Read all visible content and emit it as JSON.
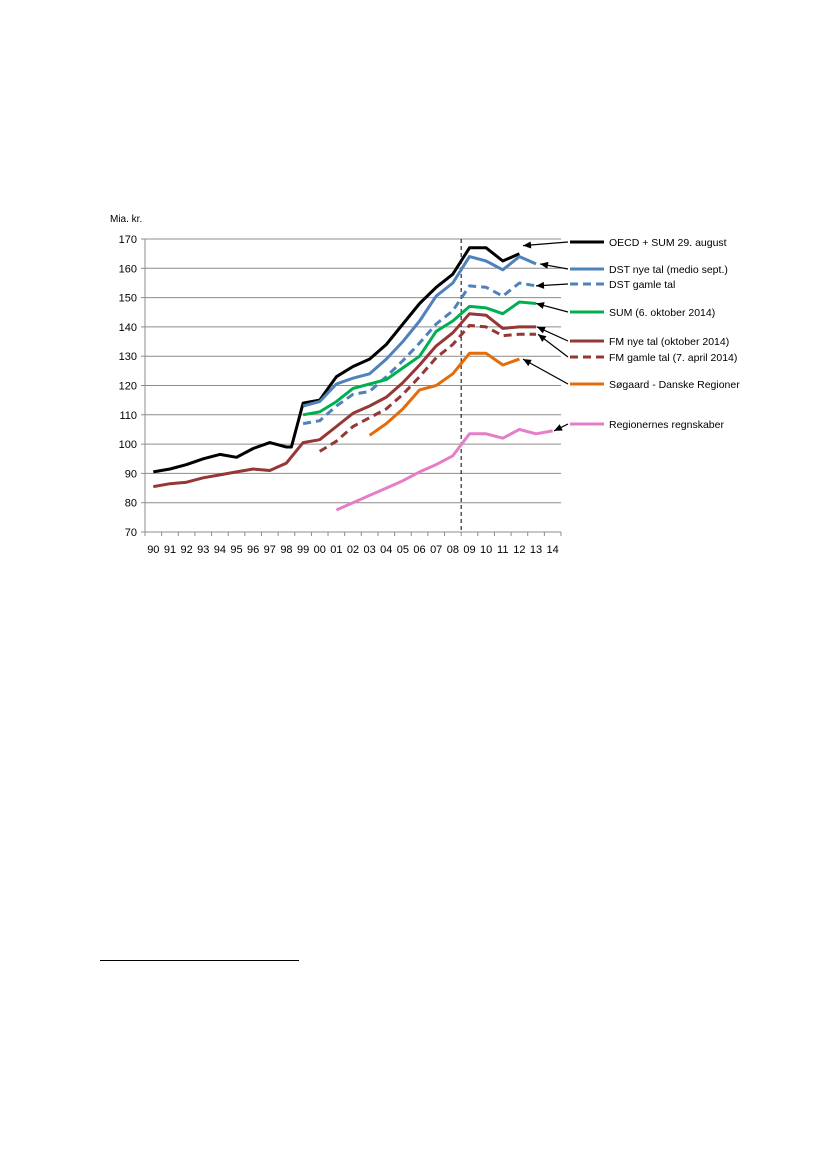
{
  "chart_data": {
    "type": "line",
    "title": "",
    "ylabel": "Mia. kr.",
    "xlabel": "",
    "ylim": [
      70,
      170
    ],
    "yticks": [
      70,
      80,
      90,
      100,
      110,
      120,
      130,
      140,
      150,
      160,
      170
    ],
    "categories": [
      "90",
      "91",
      "92",
      "93",
      "94",
      "95",
      "96",
      "97",
      "98",
      "99",
      "00",
      "01",
      "02",
      "03",
      "04",
      "05",
      "06",
      "07",
      "08",
      "09",
      "10",
      "11",
      "12",
      "13",
      "14"
    ],
    "vertical_marker_after": "08",
    "grid": "horizontal",
    "series": [
      {
        "name": "OECD + SUM 29. august",
        "color": "#000000",
        "dashed": false,
        "points": [
          [
            0,
            90.5
          ],
          [
            1,
            91.5
          ],
          [
            2,
            93
          ],
          [
            3,
            95
          ],
          [
            4,
            96.5
          ],
          [
            5,
            95.5
          ],
          [
            6,
            98.5
          ],
          [
            7,
            100.5
          ],
          [
            8,
            99
          ],
          [
            8.3,
            99
          ],
          [
            9,
            114
          ],
          [
            10,
            115
          ],
          [
            11,
            123
          ],
          [
            12,
            126.5
          ],
          [
            13,
            129
          ],
          [
            14,
            134
          ],
          [
            15,
            141
          ],
          [
            16,
            148
          ],
          [
            17,
            153.5
          ],
          [
            18,
            158
          ],
          [
            19,
            167
          ],
          [
            20,
            167
          ],
          [
            21,
            162.5
          ],
          [
            22,
            165
          ]
        ]
      },
      {
        "name": "DST nye tal (medio sept.)",
        "color": "#4f81bd",
        "dashed": false,
        "points": [
          [
            9,
            113
          ],
          [
            10,
            114.5
          ],
          [
            11,
            120.5
          ],
          [
            12,
            122.5
          ],
          [
            13,
            124
          ],
          [
            14,
            129
          ],
          [
            15,
            135
          ],
          [
            16,
            142
          ],
          [
            17,
            150.5
          ],
          [
            18,
            155
          ],
          [
            19,
            164
          ],
          [
            20,
            162.5
          ],
          [
            21,
            159.5
          ],
          [
            22,
            164
          ],
          [
            23,
            161.5
          ]
        ]
      },
      {
        "name": "DST gamle tal",
        "color": "#4f81bd",
        "dashed": true,
        "points": [
          [
            9,
            107
          ],
          [
            10,
            108
          ],
          [
            11,
            113
          ],
          [
            12,
            117
          ],
          [
            13,
            118
          ],
          [
            14,
            123
          ],
          [
            15,
            128.5
          ],
          [
            16,
            134.5
          ],
          [
            17,
            141
          ],
          [
            18,
            145.5
          ],
          [
            19,
            154
          ],
          [
            20,
            153.5
          ],
          [
            21,
            150.5
          ],
          [
            22,
            155
          ],
          [
            23,
            154
          ]
        ]
      },
      {
        "name": "SUM (6. oktober 2014)",
        "color": "#00b050",
        "dashed": false,
        "points": [
          [
            9,
            110
          ],
          [
            10,
            111
          ],
          [
            11,
            114.5
          ],
          [
            12,
            119
          ],
          [
            13,
            120.5
          ],
          [
            14,
            122
          ],
          [
            15,
            126
          ],
          [
            16,
            130
          ],
          [
            17,
            138.5
          ],
          [
            18,
            142
          ],
          [
            19,
            147
          ],
          [
            20,
            146.5
          ],
          [
            21,
            144.5
          ],
          [
            22,
            148.5
          ],
          [
            23,
            148
          ]
        ]
      },
      {
        "name": "FM nye tal (oktober 2014)",
        "color": "#953735",
        "dashed": false,
        "points": [
          [
            0,
            85.5
          ],
          [
            1,
            86.5
          ],
          [
            2,
            87
          ],
          [
            3,
            88.5
          ],
          [
            4,
            89.5
          ],
          [
            5,
            90.5
          ],
          [
            6,
            91.5
          ],
          [
            7,
            91
          ],
          [
            8,
            93.5
          ],
          [
            9,
            100.5
          ],
          [
            10,
            101.5
          ],
          [
            11,
            106
          ],
          [
            12,
            110.5
          ],
          [
            13,
            113
          ],
          [
            14,
            116
          ],
          [
            15,
            121
          ],
          [
            16,
            127
          ],
          [
            17,
            133.5
          ],
          [
            18,
            138
          ],
          [
            19,
            144.5
          ],
          [
            20,
            144
          ],
          [
            21,
            139.5
          ],
          [
            22,
            140
          ],
          [
            23,
            140
          ]
        ]
      },
      {
        "name": "FM gamle tal (7. april 2014)",
        "color": "#953735",
        "dashed": true,
        "points": [
          [
            10,
            97.5
          ],
          [
            11,
            101
          ],
          [
            12,
            106
          ],
          [
            13,
            109
          ],
          [
            14,
            112
          ],
          [
            15,
            117
          ],
          [
            16,
            123
          ],
          [
            17,
            129.5
          ],
          [
            18,
            134
          ],
          [
            19,
            140.5
          ],
          [
            20,
            140
          ],
          [
            21,
            137
          ],
          [
            22,
            137.5
          ],
          [
            23,
            137.5
          ]
        ]
      },
      {
        "name": "Søgaard - Danske Regioner",
        "color": "#e46c0a",
        "dashed": false,
        "points": [
          [
            13,
            103
          ],
          [
            14,
            107
          ],
          [
            15,
            112
          ],
          [
            16,
            118.5
          ],
          [
            17,
            120
          ],
          [
            18,
            124
          ],
          [
            19,
            131
          ],
          [
            20,
            131
          ],
          [
            21,
            127
          ],
          [
            22,
            129
          ]
        ]
      },
      {
        "name": "Regionernes regnskaber",
        "color": "#e57ec8",
        "dashed": false,
        "points": [
          [
            11,
            77.5
          ],
          [
            12,
            80
          ],
          [
            13,
            82.5
          ],
          [
            14,
            85
          ],
          [
            15,
            87.5
          ],
          [
            16,
            90.5
          ],
          [
            17,
            93
          ],
          [
            18,
            96
          ],
          [
            19,
            103.5
          ],
          [
            20,
            103.5
          ],
          [
            21,
            102
          ],
          [
            22,
            105
          ],
          [
            23,
            103.5
          ],
          [
            24,
            104.5
          ]
        ]
      }
    ],
    "legend": {
      "entries": [
        "OECD + SUM 29. august",
        "DST nye tal (medio sept.)",
        "DST gamle tal",
        "SUM (6. oktober 2014)",
        "FM nye tal (oktober 2014)",
        "FM gamle tal (7. april 2014)",
        "Søgaard - Danske Regioner",
        "Regionernes regnskaber"
      ],
      "placement": "right",
      "colors": [
        "#000000",
        "#4f81bd",
        "#4f81bd",
        "#00b050",
        "#953735",
        "#953735",
        "#e46c0a",
        "#e57ec8"
      ],
      "dashed": [
        false,
        false,
        true,
        false,
        false,
        true,
        false,
        false
      ]
    }
  }
}
